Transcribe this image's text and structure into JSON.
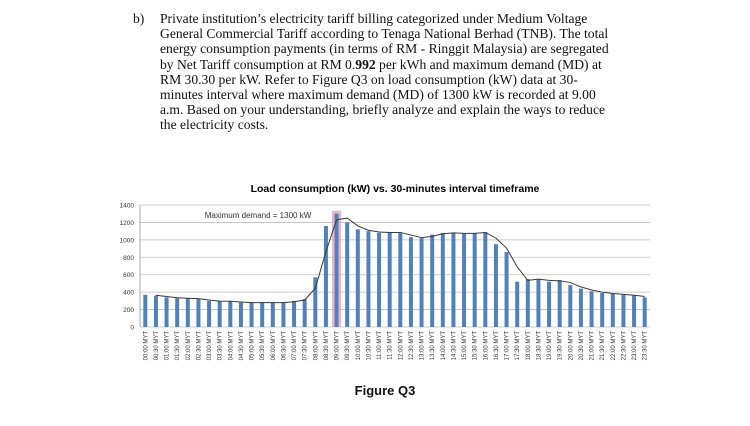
{
  "question": {
    "label": "b)",
    "lines": [
      "Private institution’s electricity tariff billing categorized under Medium Voltage",
      "General Commercial Tariff according to Tenaga National Berhad (TNB). The total",
      "energy consumption payments (in terms of RM - Ringgit Malaysia) are segregated"
    ],
    "line4_pre": "by Net Tariff consumption at RM 0.",
    "line4_bold": "992",
    "line4_post": " per kWh and maximum demand (MD) at",
    "lines_rest": [
      "RM 30.30 per kW. Refer to Figure Q3 on load consumption (kW) data at 30-",
      "minutes interval where maximum demand (MD) of 1300 kW is recorded at 9.00",
      "a.m. Based on your understanding, briefly analyze and explain the ways to reduce",
      "the electricity costs."
    ]
  },
  "figure_caption": "Figure Q3",
  "colors": {
    "bar": "#4f81bd",
    "highlight": "#e8a0b8",
    "trend": "#3a3a3a",
    "grid": "#bfbfbf"
  },
  "chart_data": {
    "type": "bar",
    "title": "Load consumption (kW) vs. 30-minutes interval timeframe",
    "annotation": "Maximum demand = 1300 kW",
    "ylim": [
      0,
      1400
    ],
    "yticks": [
      0,
      200,
      400,
      600,
      800,
      1000,
      1200,
      1400
    ],
    "grid": true,
    "trendline": "2-period moving average",
    "highlight_category": "09:00 MYT",
    "categories": [
      "00:00 MYT",
      "00:30 MYT",
      "01:00 MYT",
      "01:30 MYT",
      "02:00 MYT",
      "02:30 MYT",
      "03:00 MYT",
      "03:30 MYT",
      "04:00 MYT",
      "04:30 MYT",
      "05:00 MYT",
      "05:30 MYT",
      "06:00 MYT",
      "06:30 MYT",
      "07:00 MYT",
      "07:30 MYT",
      "08:00 MYT",
      "08:30 MYT",
      "09:00 MYT",
      "09:30 MYT",
      "10:00 MYT",
      "10:30 MYT",
      "11:00 MYT",
      "11:30 MYT",
      "12:00 MYT",
      "12:30 MYT",
      "13:00 MYT",
      "13:30 MYT",
      "14:00 MYT",
      "14:30 MYT",
      "15:00 MYT",
      "15:30 MYT",
      "16:00 MYT",
      "16:30 MYT",
      "17:00 MYT",
      "17:30 MYT",
      "18:00 MYT",
      "18:30 MYT",
      "19:00 MYT",
      "19:30 MYT",
      "20:00 MYT",
      "20:30 MYT",
      "21:00 MYT",
      "21:30 MYT",
      "22:00 MYT",
      "22:30 MYT",
      "23:00 MYT",
      "23:30 MYT"
    ],
    "values": [
      370,
      360,
      340,
      330,
      330,
      320,
      300,
      295,
      295,
      280,
      280,
      280,
      280,
      280,
      300,
      320,
      570,
      1160,
      1300,
      1200,
      1120,
      1100,
      1080,
      1090,
      1080,
      1030,
      1020,
      1060,
      1080,
      1080,
      1070,
      1080,
      1090,
      950,
      860,
      520,
      550,
      550,
      520,
      540,
      480,
      440,
      410,
      390,
      380,
      370,
      360,
      340
    ]
  }
}
